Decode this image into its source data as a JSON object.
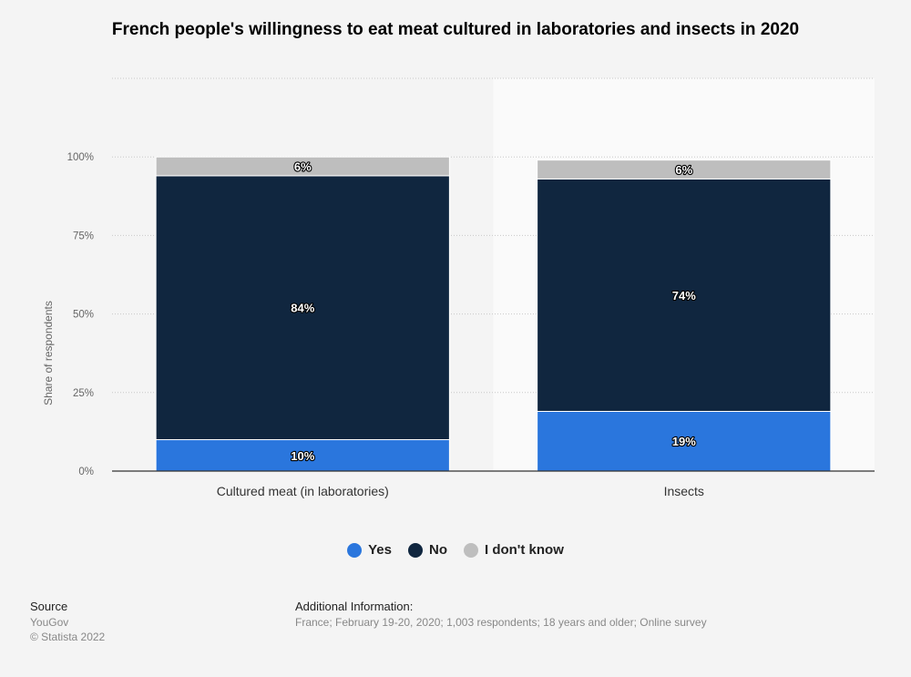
{
  "chart_data": {
    "type": "bar",
    "stacked": true,
    "title": "French people's willingness to eat meat cultured in laboratories and insects in 2020",
    "categories": [
      "Cultured meat (in laboratories)",
      "Insects"
    ],
    "series": [
      {
        "name": "Yes",
        "color": "#2a76dd",
        "values": [
          10,
          19
        ]
      },
      {
        "name": "No",
        "color": "#10263f",
        "values": [
          84,
          74
        ]
      },
      {
        "name": "I don't know",
        "color": "#bebebe",
        "values": [
          6,
          6
        ]
      }
    ],
    "data_labels": [
      [
        "10%",
        "84%",
        "6%"
      ],
      [
        "19%",
        "74%",
        "6%"
      ]
    ],
    "xlabel": "",
    "ylabel": "Share of respondents",
    "ylim": [
      0,
      125
    ],
    "yticks": [
      0,
      25,
      50,
      75,
      100
    ],
    "ytick_labels": [
      "0%",
      "25%",
      "50%",
      "75%",
      "100%"
    ],
    "grid": true,
    "legend_position": "bottom-center",
    "highlighted_category": 1
  },
  "footer": {
    "source_heading": "Source",
    "source_name": "YouGov",
    "copyright": "© Statista 2022",
    "info_heading": "Additional Information:",
    "info_text": "France; February 19-20, 2020; 1,003 respondents; 18 years and older; Online survey"
  }
}
